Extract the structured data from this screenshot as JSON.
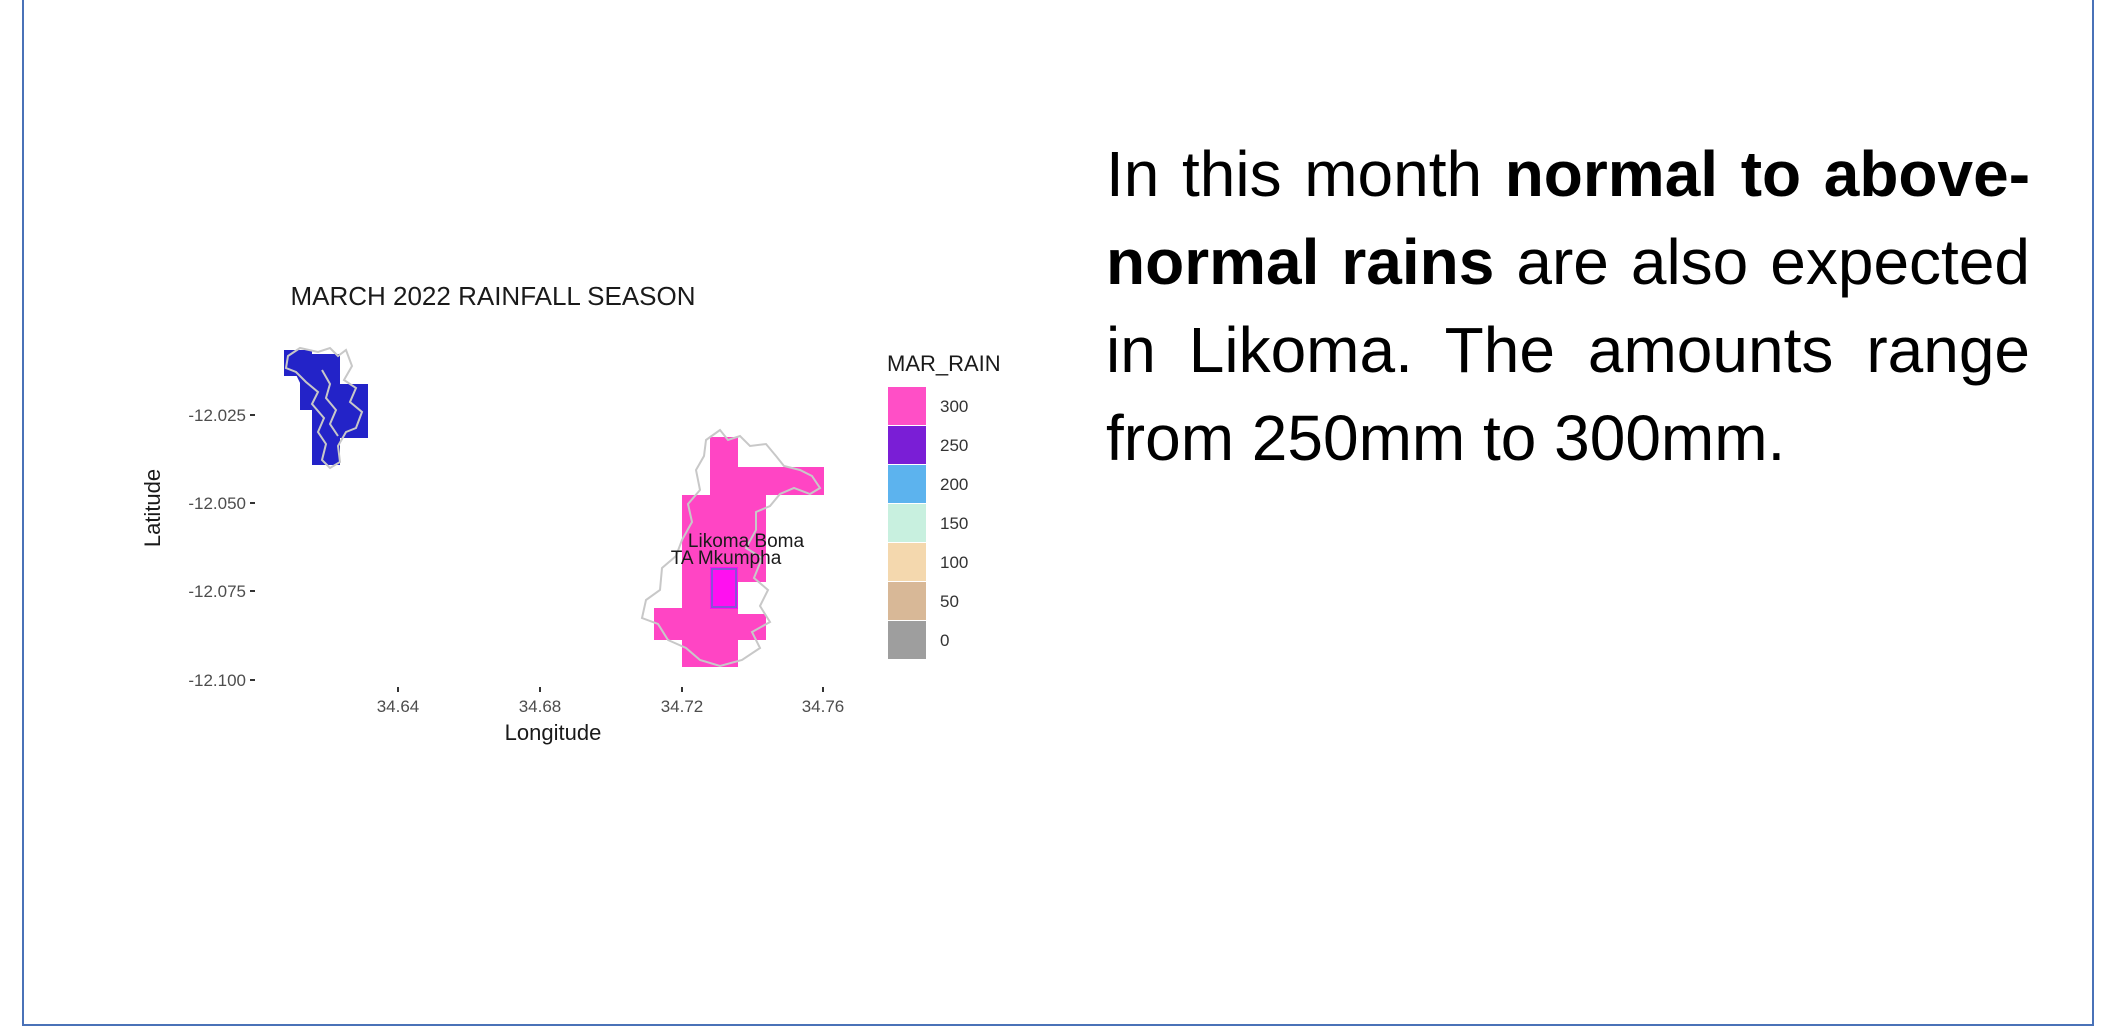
{
  "slide": {
    "border_color": "#4a72b8",
    "text": {
      "part1": "In this month ",
      "emphasis": "normal to above-normal rains",
      "part2": " are also expected in Likoma. The amounts range from 250mm to 300mm."
    }
  },
  "map": {
    "title": "MARCH 2022 RAINFALL SEASON",
    "x_label": "Longitude",
    "y_label": "Latitude",
    "x_ticks": [
      "34.64",
      "34.68",
      "34.72",
      "34.76"
    ],
    "y_ticks": [
      "-12.025",
      "-12.050",
      "-12.075",
      "-12.100"
    ],
    "legend": {
      "title": "MAR_RAIN",
      "items": [
        {
          "label": "300",
          "color": "#ff4fc6"
        },
        {
          "label": "250",
          "color": "#7a1ed6"
        },
        {
          "label": "200",
          "color": "#5cb3ee"
        },
        {
          "label": "150",
          "color": "#c8f0df"
        },
        {
          "label": "100",
          "color": "#f4d8ae"
        },
        {
          "label": "50",
          "color": "#d8b897"
        },
        {
          "label": "0",
          "color": "#9e9e9e"
        }
      ]
    },
    "place_labels": [
      "Likoma Boma",
      "TA Mkumpha"
    ],
    "colors": {
      "chizumulu_fill": "#2323c8",
      "likoma_fill": "#ff45c4",
      "center_fill": "#ff10f0",
      "outline": "#c8c8c8"
    }
  }
}
